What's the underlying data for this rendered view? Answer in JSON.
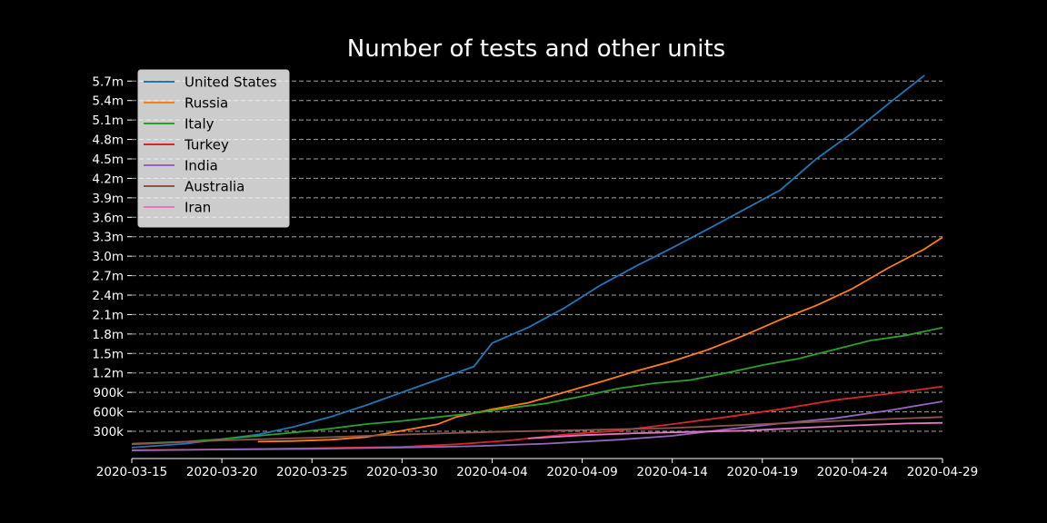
{
  "chart_data": {
    "type": "line",
    "title": "Number of tests and other units",
    "xlabel": "",
    "ylabel": "",
    "x_ticks": [
      "2020-03-15",
      "2020-03-20",
      "2020-03-25",
      "2020-03-30",
      "2020-04-04",
      "2020-04-09",
      "2020-04-14",
      "2020-04-19",
      "2020-04-24",
      "2020-04-29"
    ],
    "y_ticks": [
      300000,
      600000,
      900000,
      1200000,
      1500000,
      1800000,
      2100000,
      2400000,
      2700000,
      3000000,
      3300000,
      3600000,
      3900000,
      4200000,
      4500000,
      4800000,
      5100000,
      5400000,
      5700000
    ],
    "y_tick_labels": [
      "300k",
      "600k",
      "900k",
      "1.2m",
      "1.5m",
      "1.8m",
      "2.1m",
      "2.4m",
      "2.7m",
      "3.0m",
      "3.3m",
      "3.6m",
      "3.9m",
      "4.2m",
      "4.5m",
      "4.8m",
      "5.1m",
      "5.4m",
      "5.7m"
    ],
    "xlim": [
      "2020-03-15",
      "2020-04-29"
    ],
    "ylim": [
      -120000,
      5900000
    ],
    "grid": "horizontal dashed",
    "legend_position": "top-left",
    "background": "#000000",
    "series": [
      {
        "name": "United States",
        "color": "#1f77b4",
        "points": [
          [
            "2020-03-15",
            50000
          ],
          [
            "2020-03-18",
            110000
          ],
          [
            "2020-03-20",
            180000
          ],
          [
            "2020-03-22",
            250000
          ],
          [
            "2020-03-24",
            370000
          ],
          [
            "2020-03-26",
            520000
          ],
          [
            "2020-03-28",
            700000
          ],
          [
            "2020-03-30",
            900000
          ],
          [
            "2020-04-01",
            1100000
          ],
          [
            "2020-04-03",
            1300000
          ],
          [
            "2020-04-04",
            1660000
          ],
          [
            "2020-04-06",
            1900000
          ],
          [
            "2020-04-08",
            2200000
          ],
          [
            "2020-04-10",
            2550000
          ],
          [
            "2020-04-12",
            2850000
          ],
          [
            "2020-04-14",
            3130000
          ],
          [
            "2020-04-16",
            3420000
          ],
          [
            "2020-04-18",
            3720000
          ],
          [
            "2020-04-20",
            4020000
          ],
          [
            "2020-04-22",
            4500000
          ],
          [
            "2020-04-24",
            4900000
          ],
          [
            "2020-04-26",
            5350000
          ],
          [
            "2020-04-28",
            5790000
          ]
        ]
      },
      {
        "name": "Russia",
        "color": "#ff7f0e",
        "points": [
          [
            "2020-03-22",
            140000
          ],
          [
            "2020-03-24",
            150000
          ],
          [
            "2020-03-26",
            170000
          ],
          [
            "2020-03-28",
            210000
          ],
          [
            "2020-03-29",
            260000
          ],
          [
            "2020-03-31",
            360000
          ],
          [
            "2020-04-01",
            410000
          ],
          [
            "2020-04-02",
            520000
          ],
          [
            "2020-04-04",
            640000
          ],
          [
            "2020-04-06",
            740000
          ],
          [
            "2020-04-08",
            900000
          ],
          [
            "2020-04-10",
            1060000
          ],
          [
            "2020-04-12",
            1230000
          ],
          [
            "2020-04-14",
            1380000
          ],
          [
            "2020-04-16",
            1560000
          ],
          [
            "2020-04-18",
            1780000
          ],
          [
            "2020-04-20",
            2020000
          ],
          [
            "2020-04-22",
            2240000
          ],
          [
            "2020-04-24",
            2500000
          ],
          [
            "2020-04-26",
            2820000
          ],
          [
            "2020-04-28",
            3110000
          ],
          [
            "2020-04-29",
            3290000
          ]
        ]
      },
      {
        "name": "Italy",
        "color": "#2ca02c",
        "points": [
          [
            "2020-03-15",
            110000
          ],
          [
            "2020-03-18",
            140000
          ],
          [
            "2020-03-20",
            180000
          ],
          [
            "2020-03-22",
            230000
          ],
          [
            "2020-03-24",
            280000
          ],
          [
            "2020-03-26",
            340000
          ],
          [
            "2020-03-28",
            410000
          ],
          [
            "2020-03-30",
            460000
          ],
          [
            "2020-04-01",
            520000
          ],
          [
            "2020-04-03",
            580000
          ],
          [
            "2020-04-05",
            660000
          ],
          [
            "2020-04-07",
            730000
          ],
          [
            "2020-04-09",
            840000
          ],
          [
            "2020-04-11",
            960000
          ],
          [
            "2020-04-13",
            1040000
          ],
          [
            "2020-04-15",
            1090000
          ],
          [
            "2020-04-17",
            1200000
          ],
          [
            "2020-04-19",
            1320000
          ],
          [
            "2020-04-21",
            1420000
          ],
          [
            "2020-04-23",
            1560000
          ],
          [
            "2020-04-25",
            1700000
          ],
          [
            "2020-04-27",
            1780000
          ],
          [
            "2020-04-29",
            1900000
          ]
        ]
      },
      {
        "name": "Turkey",
        "color": "#d62728",
        "points": [
          [
            "2020-03-15",
            10000
          ],
          [
            "2020-03-20",
            20000
          ],
          [
            "2020-03-25",
            40000
          ],
          [
            "2020-03-30",
            60000
          ],
          [
            "2020-04-02",
            100000
          ],
          [
            "2020-04-05",
            160000
          ],
          [
            "2020-04-08",
            250000
          ],
          [
            "2020-04-11",
            310000
          ],
          [
            "2020-04-14",
            410000
          ],
          [
            "2020-04-17",
            520000
          ],
          [
            "2020-04-20",
            640000
          ],
          [
            "2020-04-23",
            780000
          ],
          [
            "2020-04-26",
            880000
          ],
          [
            "2020-04-29",
            990000
          ]
        ]
      },
      {
        "name": "India",
        "color": "#9467bd",
        "points": [
          [
            "2020-03-15",
            5000
          ],
          [
            "2020-03-20",
            20000
          ],
          [
            "2020-03-25",
            30000
          ],
          [
            "2020-03-30",
            50000
          ],
          [
            "2020-04-03",
            70000
          ],
          [
            "2020-04-07",
            110000
          ],
          [
            "2020-04-11",
            170000
          ],
          [
            "2020-04-14",
            230000
          ],
          [
            "2020-04-17",
            330000
          ],
          [
            "2020-04-20",
            420000
          ],
          [
            "2020-04-23",
            500000
          ],
          [
            "2020-04-26",
            620000
          ],
          [
            "2020-04-29",
            760000
          ]
        ]
      },
      {
        "name": "Australia",
        "color": "#8c564b",
        "points": [
          [
            "2020-03-15",
            100000
          ],
          [
            "2020-03-20",
            160000
          ],
          [
            "2020-03-25",
            200000
          ],
          [
            "2020-03-30",
            250000
          ],
          [
            "2020-04-04",
            290000
          ],
          [
            "2020-04-09",
            320000
          ],
          [
            "2020-04-14",
            350000
          ],
          [
            "2020-04-19",
            410000
          ],
          [
            "2020-04-24",
            470000
          ],
          [
            "2020-04-29",
            520000
          ]
        ]
      },
      {
        "name": "Iran",
        "color": "#e377c2",
        "points": [
          [
            "2020-04-06",
            190000
          ],
          [
            "2020-04-09",
            240000
          ],
          [
            "2020-04-12",
            270000
          ],
          [
            "2020-04-15",
            290000
          ],
          [
            "2020-04-18",
            310000
          ],
          [
            "2020-04-21",
            350000
          ],
          [
            "2020-04-24",
            390000
          ],
          [
            "2020-04-27",
            420000
          ],
          [
            "2020-04-29",
            430000
          ]
        ]
      }
    ]
  }
}
